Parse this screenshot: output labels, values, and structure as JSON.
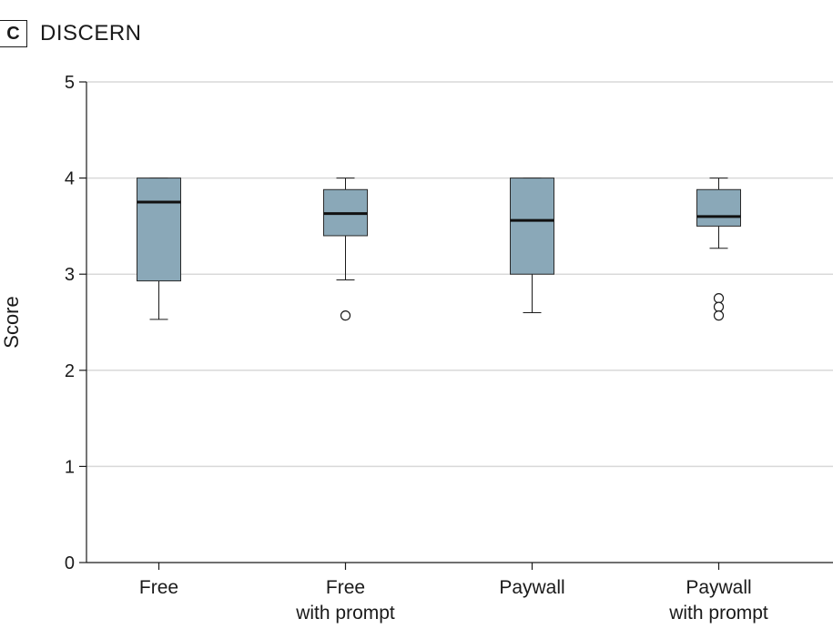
{
  "panel": {
    "letter": "C",
    "title": "DISCERN"
  },
  "chart_data": {
    "type": "box",
    "ylabel": "Score",
    "ylim": [
      0,
      5
    ],
    "yticks": [
      "0",
      "1",
      "2",
      "3",
      "4",
      "5"
    ],
    "grid": "horizontal",
    "box_color": "#8aa8b8",
    "categories": [
      {
        "label_lines": [
          "Free"
        ],
        "whisker_low": 2.53,
        "q1": 2.93,
        "median": 3.75,
        "q3": 4.0,
        "whisker_high": 4.0,
        "outliers": []
      },
      {
        "label_lines": [
          "Free",
          "with prompt"
        ],
        "whisker_low": 2.94,
        "q1": 3.4,
        "median": 3.63,
        "q3": 3.88,
        "whisker_high": 4.0,
        "outliers": [
          2.57
        ]
      },
      {
        "label_lines": [
          "Paywall"
        ],
        "whisker_low": 2.6,
        "q1": 3.0,
        "median": 3.56,
        "q3": 4.0,
        "whisker_high": 4.0,
        "outliers": []
      },
      {
        "label_lines": [
          "Paywall",
          "with prompt"
        ],
        "whisker_low": 3.27,
        "q1": 3.5,
        "median": 3.6,
        "q3": 3.88,
        "whisker_high": 4.0,
        "outliers": [
          2.75,
          2.66,
          2.57
        ]
      }
    ]
  }
}
